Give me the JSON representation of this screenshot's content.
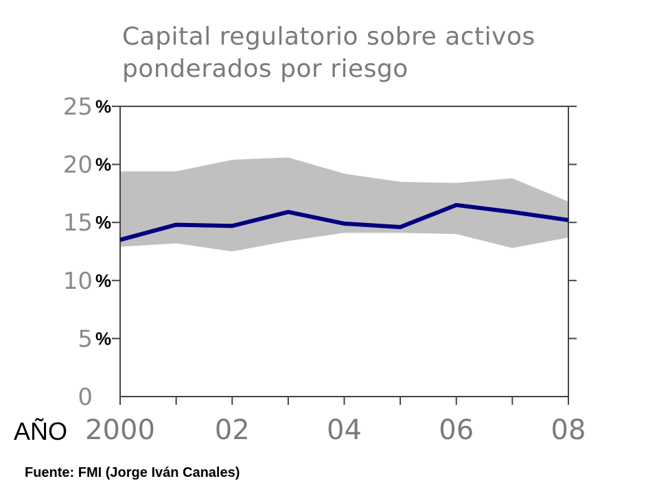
{
  "chart_data": {
    "type": "area",
    "title_lines": [
      "Capital regulatorio sobre activos",
      "ponderados por riesgo"
    ],
    "xlabel": "AÑO",
    "ylim": [
      0,
      25
    ],
    "xlim": [
      2000,
      2008
    ],
    "y_ticks": [
      {
        "value": 25,
        "num": "25",
        "pct": "%"
      },
      {
        "value": 20,
        "num": "20",
        "pct": "%"
      },
      {
        "value": 15,
        "num": "15",
        "pct": "%"
      },
      {
        "value": 10,
        "num": "10",
        "pct": "%"
      },
      {
        "value": 5,
        "num": "5",
        "pct": "%"
      },
      {
        "value": 0,
        "num": "0",
        "pct": ""
      }
    ],
    "x_ticks": [
      {
        "value": 2000,
        "label": "2000"
      },
      {
        "value": 2002,
        "label": "02"
      },
      {
        "value": 2004,
        "label": "04"
      },
      {
        "value": 2006,
        "label": "06"
      },
      {
        "value": 2008,
        "label": "08"
      }
    ],
    "x_minor_ticks": [
      2001,
      2003,
      2005,
      2007
    ],
    "x": [
      2000,
      2001,
      2002,
      2003,
      2004,
      2005,
      2006,
      2007,
      2008
    ],
    "band": {
      "upper": [
        19.4,
        19.4,
        20.4,
        20.6,
        19.2,
        18.5,
        18.4,
        18.8,
        16.8
      ],
      "lower": [
        12.9,
        13.2,
        12.5,
        13.4,
        14.1,
        14.1,
        14.0,
        12.8,
        13.7
      ],
      "color": "#c0c0c0"
    },
    "series": [
      {
        "values": [
          13.5,
          14.8,
          14.7,
          15.9,
          14.9,
          14.6,
          16.5,
          15.9,
          15.2
        ],
        "color": "#000080"
      }
    ],
    "source": "Fuente: FMI (Jorge Iván Canales)"
  }
}
